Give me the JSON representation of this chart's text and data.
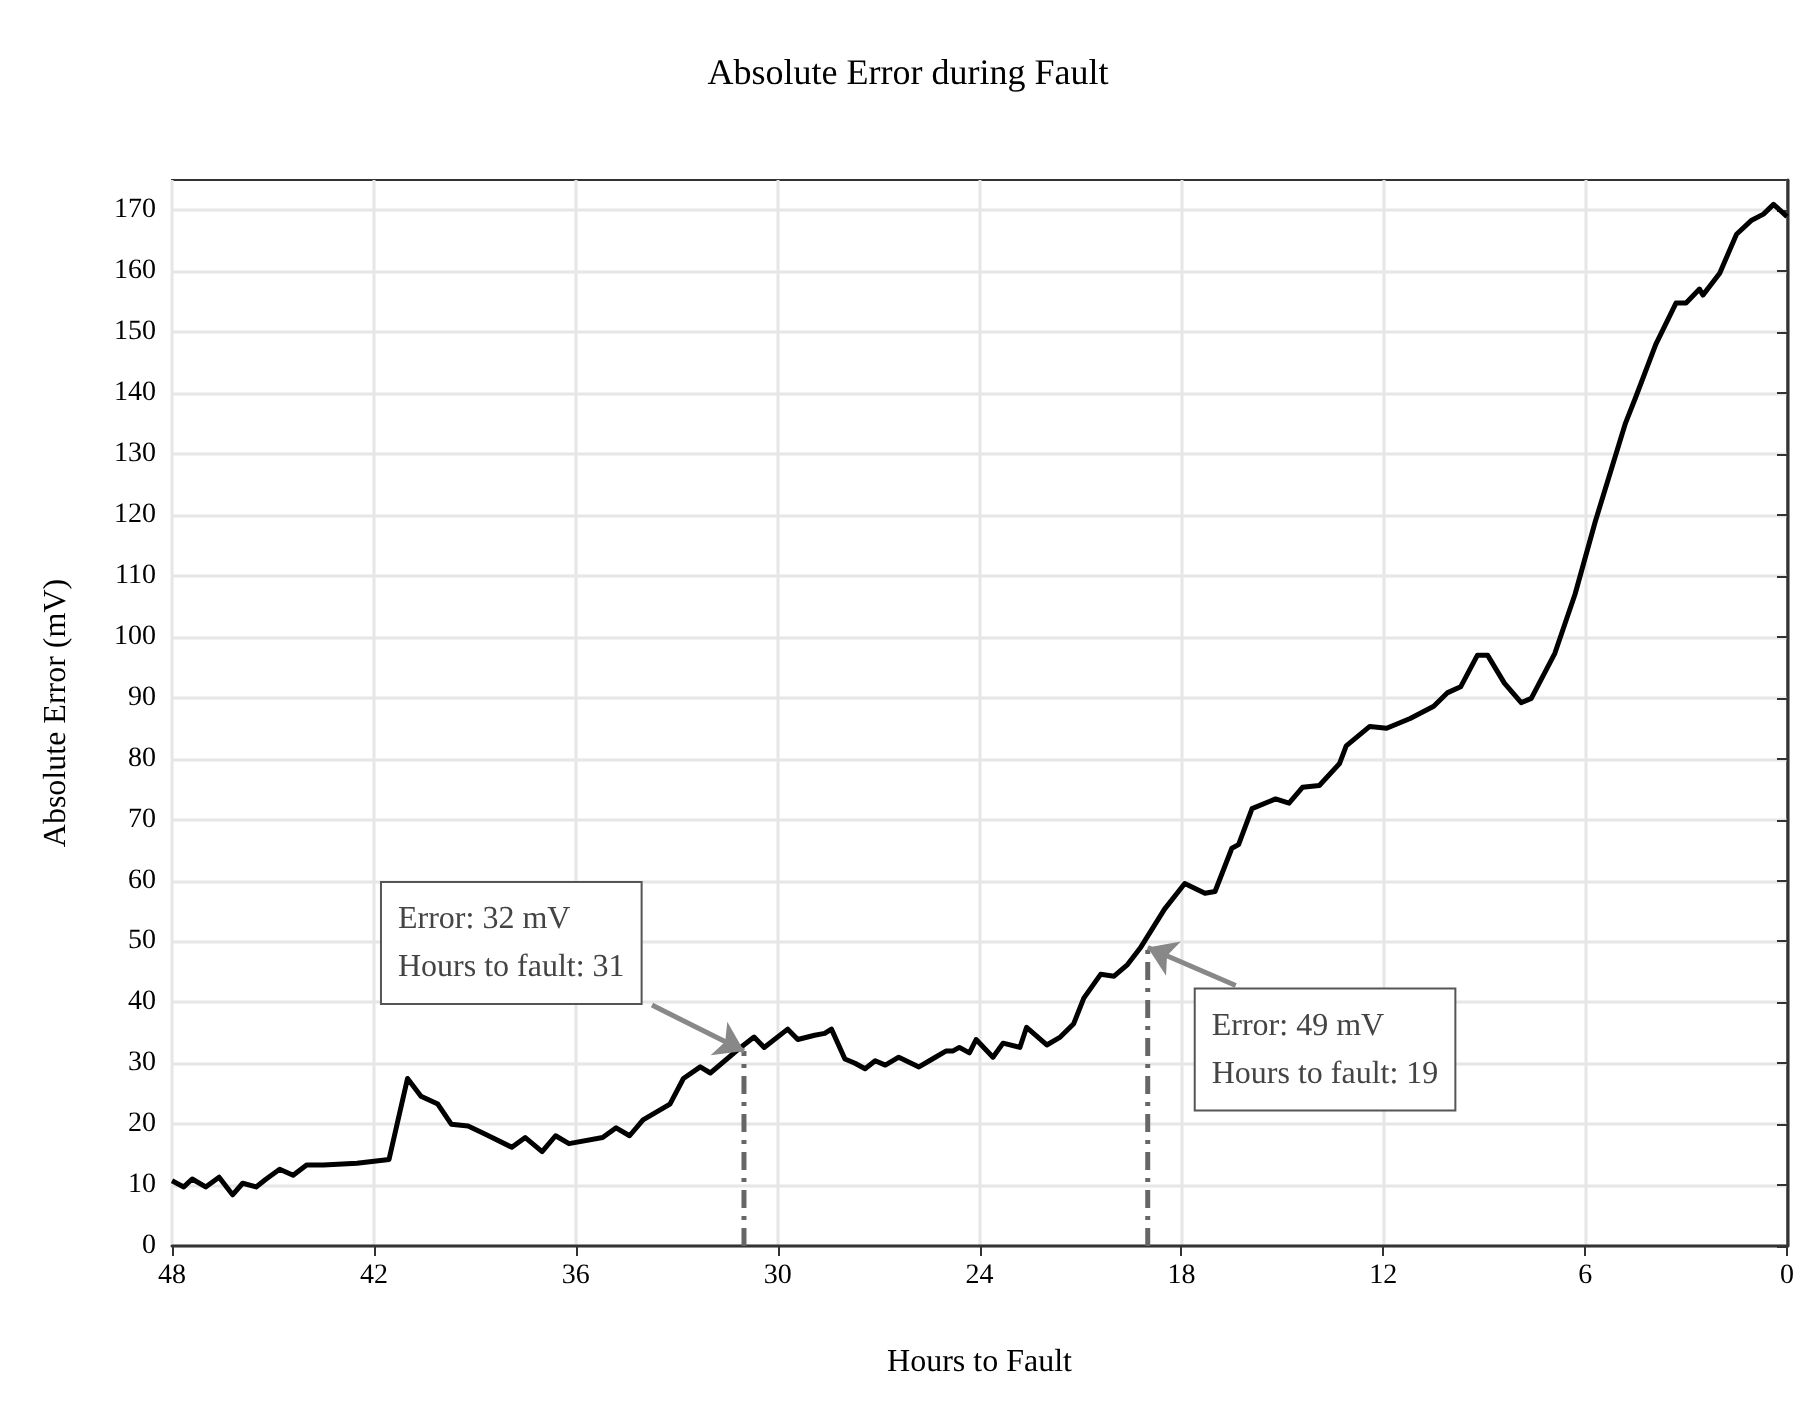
{
  "chart_data": {
    "type": "line",
    "title": "Absolute Error during Fault",
    "xlabel": "Hours to Fault",
    "ylabel": "Absolute Error (mV)",
    "xlim": [
      48,
      0
    ],
    "xticks": [
      48,
      42,
      36,
      30,
      24,
      18,
      12,
      6,
      0
    ],
    "ylim": [
      0,
      175
    ],
    "yticks": [
      0,
      10,
      20,
      30,
      40,
      50,
      60,
      70,
      80,
      90,
      100,
      110,
      120,
      130,
      140,
      150,
      160,
      170
    ],
    "grid": true,
    "marker": "none",
    "series": [
      {
        "color": "#000000",
        "line_style": "solid",
        "x": [
          48,
          47.65,
          47.4,
          47.0,
          46.6,
          46.2,
          45.9,
          45.5,
          45.2,
          44.8,
          44.4,
          44.0,
          43.5,
          42.5,
          41.55,
          41.0,
          40.6,
          40.1,
          39.7,
          39.2,
          38.7,
          37.9,
          37.5,
          37.0,
          36.6,
          36.2,
          35.2,
          34.8,
          34.4,
          34.0,
          33.2,
          32.8,
          32.3,
          32.0,
          31.1,
          30.7,
          30.4,
          29.7,
          29.4,
          28.9,
          28.6,
          28.4,
          28.0,
          27.7,
          27.4,
          27.1,
          26.8,
          26.4,
          25.8,
          25.4,
          25.0,
          24.8,
          24.6,
          24.3,
          24.1,
          23.6,
          23.3,
          22.8,
          22.6,
          22.0,
          21.6,
          21.2,
          20.9,
          20.4,
          20.0,
          19.6,
          19.2,
          18.5,
          17.9,
          17.3,
          17.0,
          16.5,
          16.3,
          15.9,
          15.2,
          14.8,
          14.4,
          13.9,
          13.3,
          13.1,
          12.4,
          11.9,
          11.2,
          10.5,
          10.1,
          9.7,
          9.2,
          8.9,
          8.4,
          7.9,
          7.6,
          6.9,
          6.3,
          5.7,
          4.8,
          4.5,
          3.9,
          3.3,
          3.0,
          2.6,
          2.5,
          2.0,
          1.5,
          1.05,
          0.7,
          0.4,
          0
        ],
        "values": [
          10.7,
          9.7,
          11,
          9.7,
          11.3,
          8.4,
          10.3,
          9.7,
          11,
          12.6,
          11.6,
          13.3,
          13.3,
          13.6,
          14.2,
          27.5,
          24.6,
          23.3,
          20,
          19.7,
          18.4,
          16.2,
          17.8,
          15.5,
          18.1,
          16.8,
          17.8,
          19.4,
          18.1,
          20.7,
          23.3,
          27.5,
          29.4,
          28.4,
          32.6,
          34.3,
          32.6,
          35.6,
          33.9,
          34.6,
          34.9,
          35.6,
          30.7,
          30,
          29.1,
          30.4,
          29.7,
          31,
          29.4,
          30.7,
          32,
          32,
          32.6,
          31.7,
          33.9,
          31,
          33.3,
          32.6,
          35.9,
          33,
          34.3,
          36.5,
          40.7,
          44.6,
          44.3,
          46.2,
          49.1,
          55.3,
          59.5,
          57.9,
          58.2,
          65.3,
          65.9,
          71.8,
          73.4,
          72.7,
          75.3,
          75.6,
          79.2,
          82.1,
          85.3,
          85,
          86.6,
          88.6,
          90.8,
          91.8,
          97,
          97,
          92.4,
          89.2,
          89.9,
          97.3,
          107,
          118.9,
          135.1,
          139.3,
          148,
          154.8,
          154.8,
          157.1,
          156.1,
          159.7,
          166.1,
          168.4,
          169.4,
          171,
          169
        ]
      },
      {
        "color": "#666666",
        "line_style": "dashed",
        "x": [
          31,
          31
        ],
        "values": [
          0,
          32
        ]
      },
      {
        "color": "#666666",
        "line_style": "dashed",
        "x": [
          19,
          19
        ],
        "values": [
          0,
          49
        ]
      }
    ],
    "annotations": [
      {
        "text": "Error: 32 mV\nHours to fault: 31",
        "x": 31,
        "y": 32
      },
      {
        "text": "Error: 49 mV\nHours to fault: 19",
        "x": 19,
        "y": 49
      }
    ]
  }
}
